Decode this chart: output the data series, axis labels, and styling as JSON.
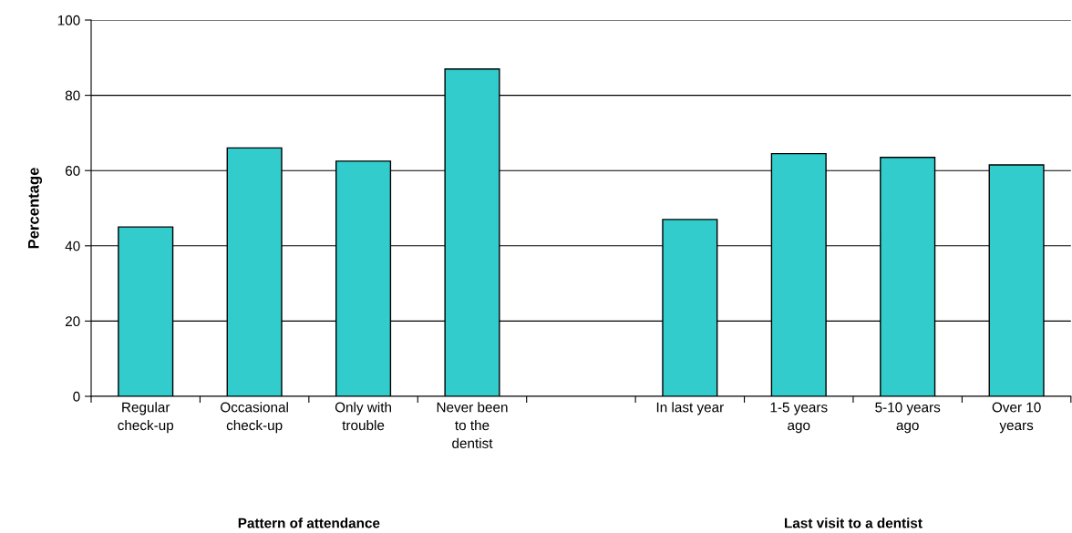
{
  "chart_data": {
    "type": "bar",
    "ylabel": "Percentage",
    "categories": [
      "Regular\ncheck-up",
      "Occasional\ncheck-up",
      "Only with\ntrouble",
      "Never been\nto the\ndentist",
      null,
      "In last year",
      "1-5 years\nago",
      "5-10 years\nago",
      "Over 10\nyears"
    ],
    "values": [
      45,
      66,
      62.5,
      87,
      null,
      47,
      64.5,
      63.5,
      61.5
    ],
    "color": "#33cccc",
    "ylim": [
      0,
      100
    ],
    "yticks": [
      0,
      20,
      40,
      60,
      80,
      100
    ],
    "grid": "y",
    "legend": false,
    "annotations": [
      "Pattern of attendance",
      "Last visit to a dentist"
    ]
  }
}
